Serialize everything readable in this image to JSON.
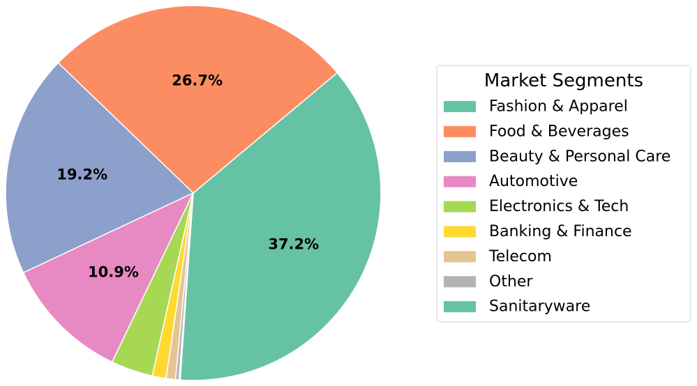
{
  "chart_data": {
    "type": "pie",
    "title": "",
    "legend": {
      "title": "Market Segments",
      "placement": "right"
    },
    "slices": [
      {
        "label": "Fashion & Apparel",
        "value": 37.2,
        "display": "37.2%",
        "color": "#66c2a5"
      },
      {
        "label": "Food & Beverages",
        "value": 26.7,
        "display": "26.7%",
        "color": "#fc8d62"
      },
      {
        "label": "Beauty & Personal Care",
        "value": 19.2,
        "display": "19.2%",
        "color": "#8da0cb"
      },
      {
        "label": "Automotive",
        "value": 10.9,
        "display": "10.9%",
        "color": "#e78ac3"
      },
      {
        "label": "Electronics & Tech",
        "value": 3.6,
        "display": "",
        "color": "#a6d854"
      },
      {
        "label": "Banking & Finance",
        "value": 1.2,
        "display": "",
        "color": "#ffd92f"
      },
      {
        "label": "Telecom",
        "value": 0.8,
        "display": "",
        "color": "#e5c494"
      },
      {
        "label": "Other",
        "value": 0.3,
        "display": "",
        "color": "#b3b3b3"
      },
      {
        "label": "Sanitaryware",
        "value": 0.1,
        "display": "",
        "color": "#66c2a5"
      }
    ]
  }
}
